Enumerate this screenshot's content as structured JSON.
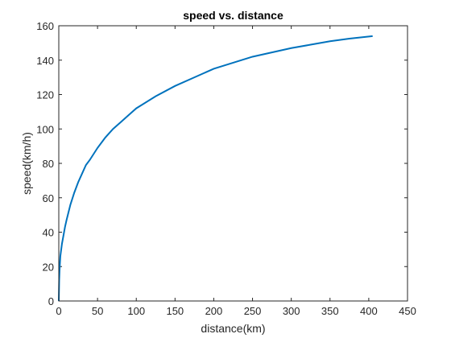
{
  "chart_data": {
    "type": "line",
    "title": "speed vs. distance",
    "xlabel": "distance(km)",
    "ylabel": "speed(km/h)",
    "xlim": [
      0,
      450
    ],
    "ylim": [
      0,
      160
    ],
    "xticks": [
      0,
      50,
      100,
      150,
      200,
      250,
      300,
      350,
      400,
      450
    ],
    "yticks": [
      0,
      20,
      40,
      60,
      80,
      100,
      120,
      140,
      160
    ],
    "grid": false,
    "line_color": "#0072BD",
    "series": [
      {
        "x": [
          0,
          0.5,
          1,
          2,
          4,
          6,
          8,
          10,
          15,
          20,
          25,
          30,
          35,
          40,
          50,
          60,
          70,
          80,
          90,
          100,
          125,
          150,
          175,
          200,
          225,
          250,
          275,
          300,
          325,
          350,
          375,
          405
        ],
        "y": [
          0,
          12,
          18,
          26,
          33,
          38,
          43,
          47,
          56,
          63,
          69,
          74,
          79,
          82,
          89,
          95,
          100,
          104,
          108,
          112,
          119,
          125,
          130,
          135,
          138.5,
          142,
          144.5,
          147,
          149,
          151,
          152.5,
          154
        ]
      }
    ]
  }
}
